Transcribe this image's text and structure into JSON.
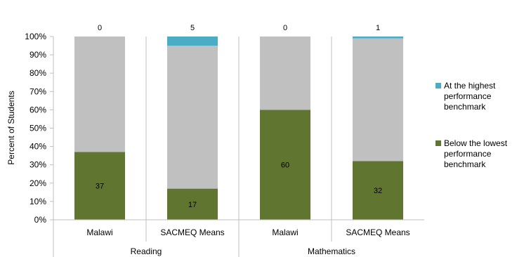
{
  "chart_data": {
    "type": "bar",
    "stacked": true,
    "ylabel": "Percent of Students",
    "ylim": [
      0,
      100
    ],
    "y_ticks": [
      "0%",
      "10%",
      "20%",
      "30%",
      "40%",
      "50%",
      "60%",
      "70%",
      "80%",
      "90%",
      "100%"
    ],
    "categories": [
      "Malawi",
      "SACMEQ Means",
      "Malawi",
      "SACMEQ Means"
    ],
    "groups": [
      {
        "label": "Reading",
        "categories": [
          "Malawi",
          "SACMEQ Means"
        ]
      },
      {
        "label": "Mathematics",
        "categories": [
          "Malawi",
          "SACMEQ Means"
        ]
      }
    ],
    "series": [
      {
        "name": "Below the lowest performance benchmark",
        "values": [
          37,
          17,
          60,
          32
        ],
        "color": "#5f7530",
        "labels": [
          "37",
          "17",
          "60",
          "32"
        ]
      },
      {
        "name": "",
        "values": [
          63,
          78,
          40,
          67
        ],
        "color": "#c0c0c0"
      },
      {
        "name": "At the highest performance benchmark",
        "values": [
          0,
          5,
          0,
          1
        ],
        "color": "#4bacc6",
        "labels": [
          "0",
          "5",
          "0",
          "1"
        ]
      }
    ],
    "legend": {
      "position": "right",
      "entries": [
        {
          "name": "At the highest performance benchmark",
          "lines": [
            "At the highest",
            "performance",
            "benchmark"
          ],
          "color": "#4bacc6"
        },
        {
          "name": "Below the lowest performance benchmark",
          "lines": [
            "Below the lowest",
            "performance",
            "benchmark"
          ],
          "color": "#5f7530"
        }
      ]
    },
    "grid": false
  }
}
